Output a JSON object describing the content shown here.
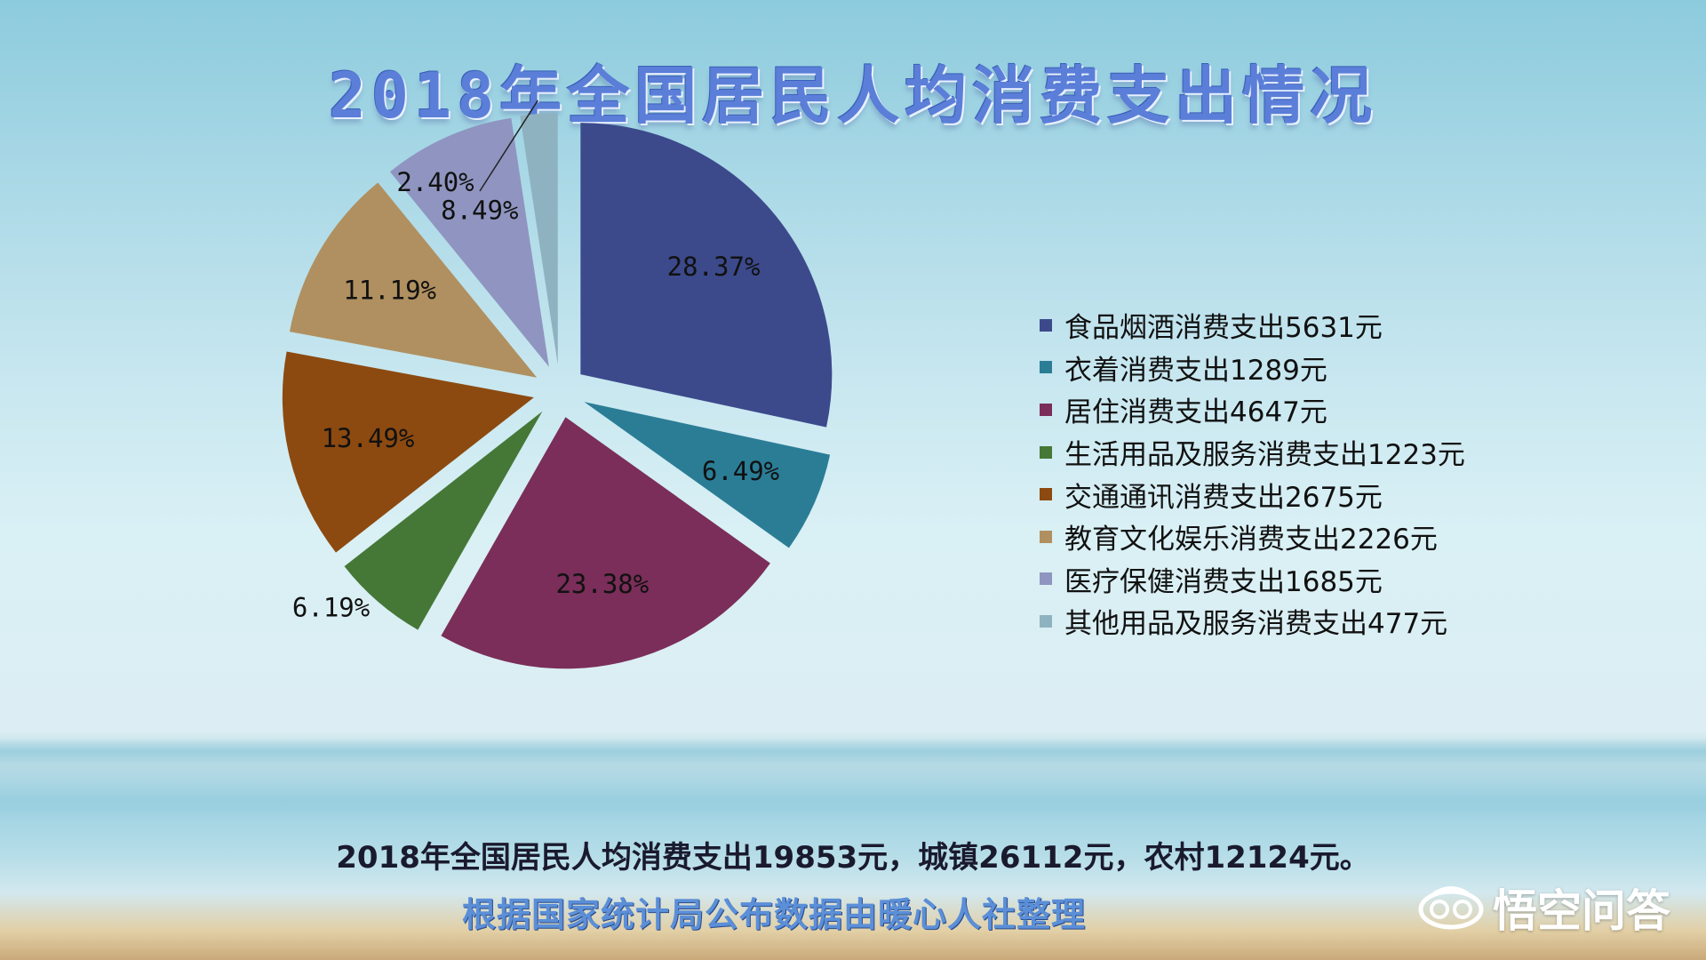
{
  "title": "2018年全国居民人均消费支出情况",
  "chart_data": {
    "type": "pie",
    "title": "2018年全国居民人均消费支出情况",
    "exploded": true,
    "legend_position": "right",
    "slices": [
      {
        "label": "食品烟酒消费支出5631元",
        "percent": "28.37%",
        "value": 28.37,
        "color": "#3c4a8c"
      },
      {
        "label": "衣着消费支出1289元",
        "percent": "6.49%",
        "value": 6.49,
        "color": "#2b7d96"
      },
      {
        "label": "居住消费支出4647元",
        "percent": "23.38%",
        "value": 23.38,
        "color": "#7a2e59"
      },
      {
        "label": "生活用品及服务消费支出1223元",
        "percent": "6.19%",
        "value": 6.19,
        "color": "#457837"
      },
      {
        "label": "交通通讯消费支出2675元",
        "percent": "13.49%",
        "value": 13.49,
        "color": "#8c4a10"
      },
      {
        "label": "教育文化娱乐消费支出2226元",
        "percent": "11.19%",
        "value": 11.19,
        "color": "#b09060"
      },
      {
        "label": "医疗保健消费支出1685元",
        "percent": "8.49%",
        "value": 8.49,
        "color": "#8f95c0"
      },
      {
        "label": "其他用品及服务消费支出477元",
        "percent": "2.40%",
        "value": 2.4,
        "color": "#8fb2c0"
      }
    ]
  },
  "summary": "2018年全国居民人均消费支出19853元，城镇26112元，农村12124元。",
  "source": "根据国家统计局公布数据由暖心人社整理",
  "brand": {
    "name": "悟空问答",
    "icon": "wukong-logo-icon"
  }
}
